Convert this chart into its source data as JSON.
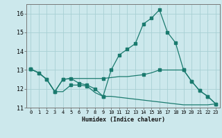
{
  "xlabel": "Humidex (Indice chaleur)",
  "bg_color": "#cce8ec",
  "grid_color": "#a8d0d4",
  "line_color": "#1a7a6e",
  "xlim": [
    -0.5,
    23.5
  ],
  "ylim": [
    11,
    16.5
  ],
  "yticks": [
    11,
    12,
    13,
    14,
    15,
    16
  ],
  "xticks": [
    0,
    1,
    2,
    3,
    4,
    5,
    6,
    7,
    8,
    9,
    10,
    11,
    12,
    13,
    14,
    15,
    16,
    17,
    18,
    19,
    20,
    21,
    22,
    23
  ],
  "series1_x": [
    0,
    1,
    2,
    3,
    4,
    5,
    6,
    7,
    8,
    9,
    10,
    11,
    12,
    13,
    14,
    15,
    16,
    17,
    18,
    19,
    20,
    21,
    22,
    23
  ],
  "series1_y": [
    13.05,
    12.85,
    12.5,
    11.85,
    11.85,
    12.2,
    12.2,
    12.15,
    11.8,
    11.6,
    11.6,
    11.55,
    11.5,
    11.45,
    11.4,
    11.35,
    11.3,
    11.25,
    11.2,
    11.15,
    11.15,
    11.15,
    11.15,
    11.2
  ],
  "series2_x": [
    0,
    1,
    2,
    3,
    4,
    5,
    6,
    7,
    8,
    9,
    10,
    11,
    12,
    13,
    14,
    15,
    16,
    17,
    18,
    19,
    20,
    21,
    22,
    23
  ],
  "series2_y": [
    13.05,
    12.85,
    12.5,
    11.85,
    12.5,
    12.55,
    12.3,
    12.2,
    12.0,
    11.6,
    13.0,
    13.8,
    14.1,
    14.4,
    15.45,
    15.75,
    16.2,
    15.0,
    14.45,
    13.0,
    12.4,
    11.9,
    11.6,
    11.2
  ],
  "series3_x": [
    0,
    1,
    2,
    3,
    4,
    5,
    6,
    7,
    8,
    9,
    10,
    11,
    12,
    13,
    14,
    15,
    16,
    17,
    18,
    19,
    20,
    21,
    22,
    23
  ],
  "series3_y": [
    13.05,
    12.85,
    12.5,
    11.85,
    12.5,
    12.55,
    12.55,
    12.55,
    12.55,
    12.55,
    12.6,
    12.65,
    12.65,
    12.7,
    12.75,
    12.85,
    13.0,
    13.0,
    13.0,
    13.0,
    12.4,
    11.9,
    11.6,
    11.2
  ],
  "marker_indices_s2": [
    0,
    1,
    2,
    3,
    4,
    5,
    6,
    7,
    8,
    9,
    10,
    11,
    12,
    13,
    14,
    15,
    16,
    17,
    18,
    19,
    20,
    21,
    22,
    23
  ],
  "marker_indices_s3": [
    0,
    4,
    9,
    14,
    16,
    19,
    20,
    21,
    22,
    23
  ],
  "marker_indices_s1": [
    0,
    1,
    2,
    3,
    5,
    6,
    7,
    9
  ]
}
